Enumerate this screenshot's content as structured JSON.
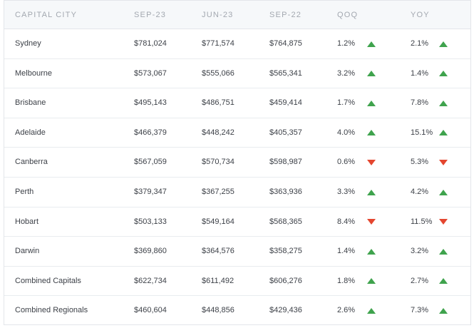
{
  "header": {
    "city": "CAPITAL CITY",
    "sep23": "SEP-23",
    "jun23": "JUN-23",
    "sep22": "SEP-22",
    "qoq": "QOQ",
    "yoy": "YOY"
  },
  "colors": {
    "up": "#3fa34d",
    "down": "#e4462f",
    "header_bg": "#f6f8fa"
  },
  "rows": [
    {
      "city": "Sydney",
      "sep23": "$781,024",
      "jun23": "$771,574",
      "sep22": "$764,875",
      "qoq": "1.2%",
      "qoq_dir": "up",
      "yoy": "2.1%",
      "yoy_dir": "up"
    },
    {
      "city": "Melbourne",
      "sep23": "$573,067",
      "jun23": "$555,066",
      "sep22": "$565,341",
      "qoq": "3.2%",
      "qoq_dir": "up",
      "yoy": "1.4%",
      "yoy_dir": "up"
    },
    {
      "city": "Brisbane",
      "sep23": "$495,143",
      "jun23": "$486,751",
      "sep22": "$459,414",
      "qoq": "1.7%",
      "qoq_dir": "up",
      "yoy": "7.8%",
      "yoy_dir": "up"
    },
    {
      "city": "Adelaide",
      "sep23": "$466,379",
      "jun23": "$448,242",
      "sep22": "$405,357",
      "qoq": "4.0%",
      "qoq_dir": "up",
      "yoy": "15.1%",
      "yoy_dir": "up"
    },
    {
      "city": "Canberra",
      "sep23": "$567,059",
      "jun23": "$570,734",
      "sep22": "$598,987",
      "qoq": "0.6%",
      "qoq_dir": "down",
      "yoy": "5.3%",
      "yoy_dir": "down"
    },
    {
      "city": "Perth",
      "sep23": "$379,347",
      "jun23": "$367,255",
      "sep22": "$363,936",
      "qoq": "3.3%",
      "qoq_dir": "up",
      "yoy": "4.2%",
      "yoy_dir": "up"
    },
    {
      "city": "Hobart",
      "sep23": "$503,133",
      "jun23": "$549,164",
      "sep22": "$568,365",
      "qoq": "8.4%",
      "qoq_dir": "down",
      "yoy": "11.5%",
      "yoy_dir": "down"
    },
    {
      "city": "Darwin",
      "sep23": "$369,860",
      "jun23": "$364,576",
      "sep22": "$358,275",
      "qoq": "1.4%",
      "qoq_dir": "up",
      "yoy": "3.2%",
      "yoy_dir": "up"
    },
    {
      "city": "Combined Capitals",
      "sep23": "$622,734",
      "jun23": "$611,492",
      "sep22": "$606,276",
      "qoq": "1.8%",
      "qoq_dir": "up",
      "yoy": "2.7%",
      "yoy_dir": "up"
    },
    {
      "city": "Combined Regionals",
      "sep23": "$460,604",
      "jun23": "$448,856",
      "sep22": "$429,436",
      "qoq": "2.6%",
      "qoq_dir": "up",
      "yoy": "7.3%",
      "yoy_dir": "up"
    }
  ]
}
